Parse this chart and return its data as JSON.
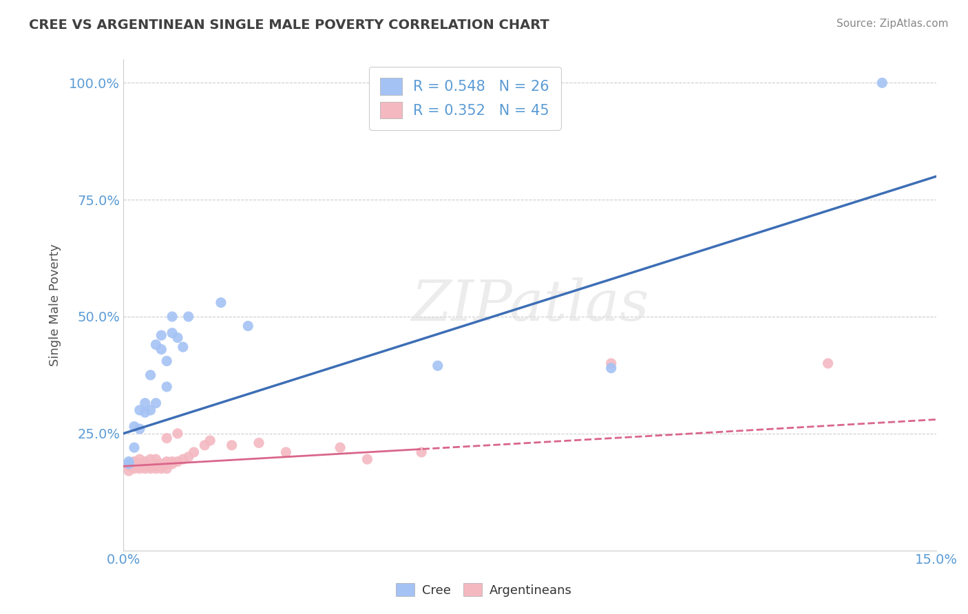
{
  "title": "CREE VS ARGENTINEAN SINGLE MALE POVERTY CORRELATION CHART",
  "source": "Source: ZipAtlas.com",
  "ylabel": "Single Male Poverty",
  "xlim": [
    0.0,
    0.15
  ],
  "ylim": [
    0.0,
    1.05
  ],
  "xticks": [
    0.0,
    0.025,
    0.05,
    0.075,
    0.1,
    0.125,
    0.15
  ],
  "xticklabels": [
    "0.0%",
    "",
    "",
    "",
    "",
    "",
    "15.0%"
  ],
  "yticks": [
    0.0,
    0.25,
    0.5,
    0.75,
    1.0
  ],
  "yticklabels": [
    "",
    "25.0%",
    "50.0%",
    "75.0%",
    "100.0%"
  ],
  "cree_color": "#a4c2f4",
  "argentinean_color": "#f4b8c1",
  "cree_line_color": "#3d6eb5",
  "argentinean_line_color": "#d9668a",
  "legend_r_cree": "R = 0.548   N = 26",
  "legend_r_arg": "R = 0.352   N = 45",
  "cree_points_x": [
    0.001,
    0.001,
    0.002,
    0.002,
    0.003,
    0.003,
    0.004,
    0.004,
    0.005,
    0.005,
    0.006,
    0.006,
    0.007,
    0.007,
    0.008,
    0.008,
    0.009,
    0.009,
    0.01,
    0.011,
    0.012,
    0.018,
    0.023,
    0.058,
    0.09,
    0.14
  ],
  "cree_points_y": [
    0.185,
    0.19,
    0.22,
    0.265,
    0.26,
    0.3,
    0.295,
    0.315,
    0.3,
    0.375,
    0.315,
    0.44,
    0.43,
    0.46,
    0.35,
    0.405,
    0.465,
    0.5,
    0.455,
    0.435,
    0.5,
    0.53,
    0.48,
    0.395,
    0.39,
    1.0
  ],
  "arg_points_x": [
    0.001,
    0.001,
    0.001,
    0.002,
    0.002,
    0.002,
    0.003,
    0.003,
    0.003,
    0.003,
    0.004,
    0.004,
    0.004,
    0.004,
    0.005,
    0.005,
    0.005,
    0.006,
    0.006,
    0.006,
    0.006,
    0.007,
    0.007,
    0.007,
    0.008,
    0.008,
    0.008,
    0.008,
    0.009,
    0.009,
    0.01,
    0.01,
    0.011,
    0.012,
    0.013,
    0.015,
    0.016,
    0.02,
    0.025,
    0.03,
    0.04,
    0.045,
    0.055,
    0.09,
    0.13
  ],
  "arg_points_y": [
    0.17,
    0.18,
    0.185,
    0.175,
    0.18,
    0.19,
    0.175,
    0.18,
    0.185,
    0.195,
    0.175,
    0.18,
    0.185,
    0.19,
    0.175,
    0.18,
    0.195,
    0.175,
    0.18,
    0.185,
    0.195,
    0.175,
    0.18,
    0.185,
    0.175,
    0.185,
    0.19,
    0.24,
    0.185,
    0.19,
    0.19,
    0.25,
    0.195,
    0.2,
    0.21,
    0.225,
    0.235,
    0.225,
    0.23,
    0.21,
    0.22,
    0.195,
    0.21,
    0.4,
    0.4
  ],
  "watermark": "ZIPatlas",
  "background_color": "#ffffff",
  "grid_color": "#cccccc",
  "title_color": "#404040",
  "axis_color": "#5b9bd5"
}
